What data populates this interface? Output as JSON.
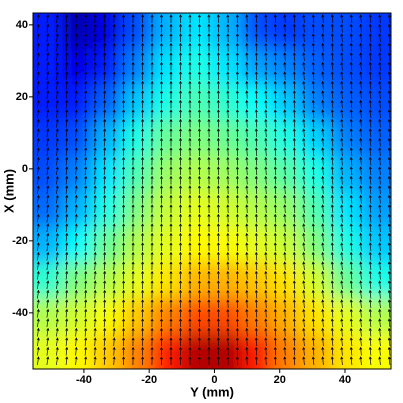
{
  "chart_data": {
    "type": "contour",
    "xlabel": "Y (mm)",
    "ylabel": "X (mm)",
    "xlim": [
      -55.6,
      54.1
    ],
    "ylim": [
      -55.6,
      43.3
    ],
    "xticks": [
      -40,
      -20,
      0,
      20,
      40
    ],
    "yticks": [
      -40,
      -20,
      0,
      20,
      40
    ],
    "colormap": "jet",
    "zlim": [
      0,
      10
    ],
    "z": [
      [
        1.5,
        0.5,
        1,
        2,
        3,
        3.5,
        3,
        2,
        1.8,
        2,
        2,
        1.8
      ],
      [
        1.5,
        1,
        1.5,
        2.5,
        3.5,
        4,
        3.5,
        2.8,
        2.5,
        2.2,
        2,
        1.8
      ],
      [
        1.5,
        1.5,
        2.2,
        3.2,
        4,
        4.5,
        4.2,
        3.8,
        3.2,
        2.5,
        2.2,
        2
      ],
      [
        1.8,
        2,
        3,
        4,
        4.8,
        5,
        4.8,
        4.5,
        4,
        3.3,
        2.5,
        2.2
      ],
      [
        2,
        2.5,
        3.5,
        4.5,
        5.3,
        5.5,
        5.3,
        5,
        4.6,
        4,
        3,
        2.5
      ],
      [
        2.3,
        3,
        4,
        5,
        5.7,
        6,
        5.8,
        5.5,
        5.2,
        4.5,
        3.5,
        2.8
      ],
      [
        3,
        3.8,
        4.8,
        5.5,
        6,
        6.3,
        6.2,
        6,
        5.7,
        5,
        4,
        3.2
      ],
      [
        4.2,
        5,
        5.5,
        6,
        6.5,
        7,
        7,
        6.8,
        6.5,
        5.8,
        4.8,
        4
      ],
      [
        5.5,
        5.8,
        6.2,
        6.8,
        7.5,
        8,
        8,
        7.5,
        7,
        6.5,
        6,
        5.5
      ],
      [
        6,
        6.3,
        6.8,
        7.5,
        8.5,
        9.5,
        9.5,
        8.5,
        7.5,
        7,
        6.5,
        6.2
      ]
    ],
    "arrow_color": "#000000",
    "arrow_angles": [
      8,
      6,
      4,
      2,
      0,
      -2,
      -3,
      -4,
      -5,
      -6,
      -6,
      -6
    ]
  }
}
